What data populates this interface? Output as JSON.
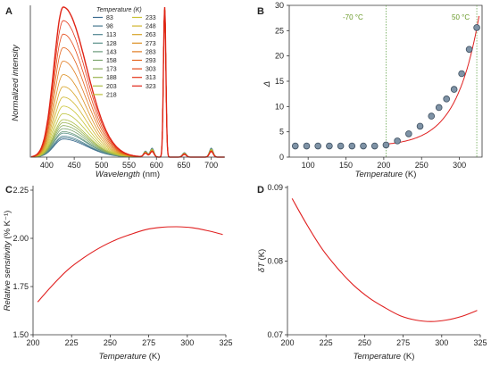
{
  "panels": {
    "A": {
      "label": "A",
      "xlabel": "Wavelength",
      "xunit": "(nm)",
      "ylabel": "Normalized intensity",
      "xticks": [
        400,
        450,
        500,
        550,
        600,
        650,
        700
      ],
      "legend_title": "Temperature (K)",
      "legend_col1": [
        "83",
        "98",
        "113",
        "128",
        "143",
        "158",
        "173",
        "188",
        "203",
        "218"
      ],
      "legend_col2": [
        "233",
        "248",
        "263",
        "273",
        "283",
        "293",
        "303",
        "313",
        "323"
      ]
    },
    "B": {
      "label": "B",
      "xlabel": "Temperature",
      "xunit": "(K)",
      "ylabel": "Δ",
      "xticks": [
        "100",
        "150",
        "200",
        "250",
        "300"
      ],
      "yticks": [
        "0",
        "5",
        "10",
        "15",
        "20",
        "25",
        "30"
      ],
      "annot_left": "-70 °C",
      "annot_right": "50 °C"
    },
    "C": {
      "label": "C",
      "xlabel": "Temperature",
      "xunit": "(K)",
      "ylabel": "Relative sensitivity",
      "yunit": "(% K⁻¹)",
      "xticks": [
        "200",
        "225",
        "250",
        "275",
        "300",
        "325"
      ],
      "yticks": [
        "1.50",
        "1.75",
        "2.00",
        "2.25"
      ]
    },
    "D": {
      "label": "D",
      "xlabel": "Temperature",
      "xunit": "(K)",
      "ylabel": "δT",
      "yunit": "(K)",
      "xticks": [
        "200",
        "225",
        "250",
        "275",
        "300",
        "325"
      ],
      "yticks": [
        "0.07",
        "0.08",
        "0.09"
      ]
    }
  },
  "chart_data": [
    {
      "panel": "A",
      "type": "line",
      "description_x": "Wavelength (nm)",
      "xlim": [
        370,
        725
      ],
      "ylim": [
        0,
        1
      ],
      "series_temperatures_K": [
        83,
        98,
        113,
        128,
        143,
        158,
        173,
        188,
        203,
        218,
        233,
        248,
        263,
        273,
        283,
        293,
        303,
        313,
        323
      ],
      "broad_band_peak_nm": 430,
      "broad_band_relative_height": [
        0.12,
        0.13,
        0.14,
        0.16,
        0.17,
        0.19,
        0.21,
        0.23,
        0.25,
        0.29,
        0.34,
        0.4,
        0.47,
        0.55,
        0.64,
        0.73,
        0.82,
        0.91,
        1.0
      ],
      "sharp_peaks_nm": [
        580,
        592,
        615,
        651,
        700
      ],
      "sharp_peak_heights": [
        0.04,
        0.06,
        1.0,
        0.03,
        0.06
      ],
      "colors": [
        "#3a6a8e",
        "#46788f",
        "#4e8590",
        "#5a9088",
        "#6a9a7a",
        "#7aa36b",
        "#8aab5d",
        "#9bb450",
        "#abbc44",
        "#bcc23a",
        "#c9c332",
        "#d0b52c",
        "#d7a326",
        "#dc8f22",
        "#e07a1e",
        "#e3621b",
        "#e54a18",
        "#e43517",
        "#e02416"
      ]
    },
    {
      "panel": "B",
      "type": "scatter",
      "x": [
        83,
        98,
        113,
        128,
        143,
        158,
        173,
        188,
        203,
        218,
        233,
        248,
        263,
        273,
        283,
        293,
        303,
        313,
        323
      ],
      "y": [
        2.2,
        2.2,
        2.2,
        2.2,
        2.2,
        2.2,
        2.2,
        2.2,
        2.4,
        3.2,
        4.6,
        6.1,
        8.1,
        9.8,
        11.5,
        13.4,
        16.5,
        21.3,
        25.6
      ],
      "fit": "exponential (red line)",
      "xlim": [
        75,
        330
      ],
      "ylim": [
        0,
        30
      ],
      "vlines": [
        203,
        323
      ]
    },
    {
      "panel": "C",
      "type": "line",
      "x": [
        203,
        213,
        223,
        233,
        243,
        253,
        263,
        273,
        283,
        293,
        303,
        313,
        323
      ],
      "y": [
        1.67,
        1.76,
        1.84,
        1.9,
        1.95,
        1.99,
        2.02,
        2.045,
        2.057,
        2.06,
        2.055,
        2.04,
        2.02
      ],
      "xlim": [
        200,
        325
      ],
      "ylim": [
        1.5,
        2.25
      ]
    },
    {
      "panel": "D",
      "type": "line",
      "x": [
        203,
        213,
        223,
        233,
        243,
        253,
        263,
        273,
        283,
        293,
        303,
        313,
        323
      ],
      "y": [
        0.0885,
        0.0848,
        0.0815,
        0.0789,
        0.0767,
        0.075,
        0.0737,
        0.0726,
        0.072,
        0.0718,
        0.072,
        0.0725,
        0.0733
      ],
      "xlim": [
        200,
        325
      ],
      "ylim": [
        0.07,
        0.09
      ]
    }
  ],
  "colors": {
    "fit_line": "#e02020",
    "marker_fill": "#7f93a6",
    "marker_edge": "#3d4f60",
    "vline": "#6aa84f"
  }
}
